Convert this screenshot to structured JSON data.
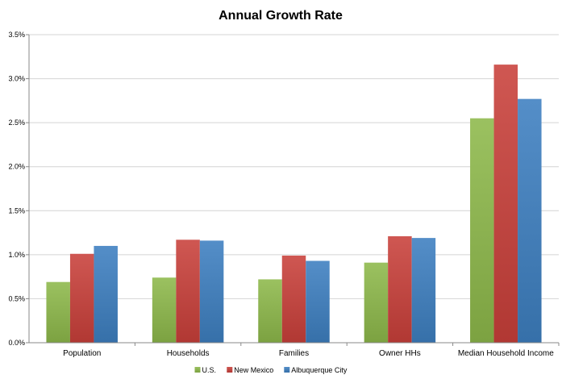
{
  "chart_data": {
    "type": "bar",
    "title": "Annual Growth Rate",
    "xlabel": "",
    "ylabel": "",
    "categories": [
      "Population",
      "Households",
      "Families",
      "Owner HHs",
      "Median Household Income"
    ],
    "series": [
      {
        "name": "U.S.",
        "values": [
          0.69,
          0.74,
          0.72,
          0.91,
          2.55
        ],
        "color": "#8db84a"
      },
      {
        "name": "New Mexico",
        "values": [
          1.01,
          1.17,
          0.99,
          1.21,
          3.16
        ],
        "color": "#c9403a"
      },
      {
        "name": "Albuquerque City",
        "values": [
          1.1,
          1.16,
          0.93,
          1.19,
          2.77
        ],
        "color": "#3d7fc0"
      }
    ],
    "ylim": [
      0,
      3.5
    ],
    "yticks": [
      0,
      0.5,
      1.0,
      1.5,
      2.0,
      2.5,
      3.0,
      3.5
    ],
    "ytick_labels": [
      "0.0%",
      "0.5%",
      "1.0%",
      "1.5%",
      "2.0%",
      "2.5%",
      "3.0%",
      "3.5%"
    ],
    "grid": true,
    "legend_position": "bottom"
  }
}
